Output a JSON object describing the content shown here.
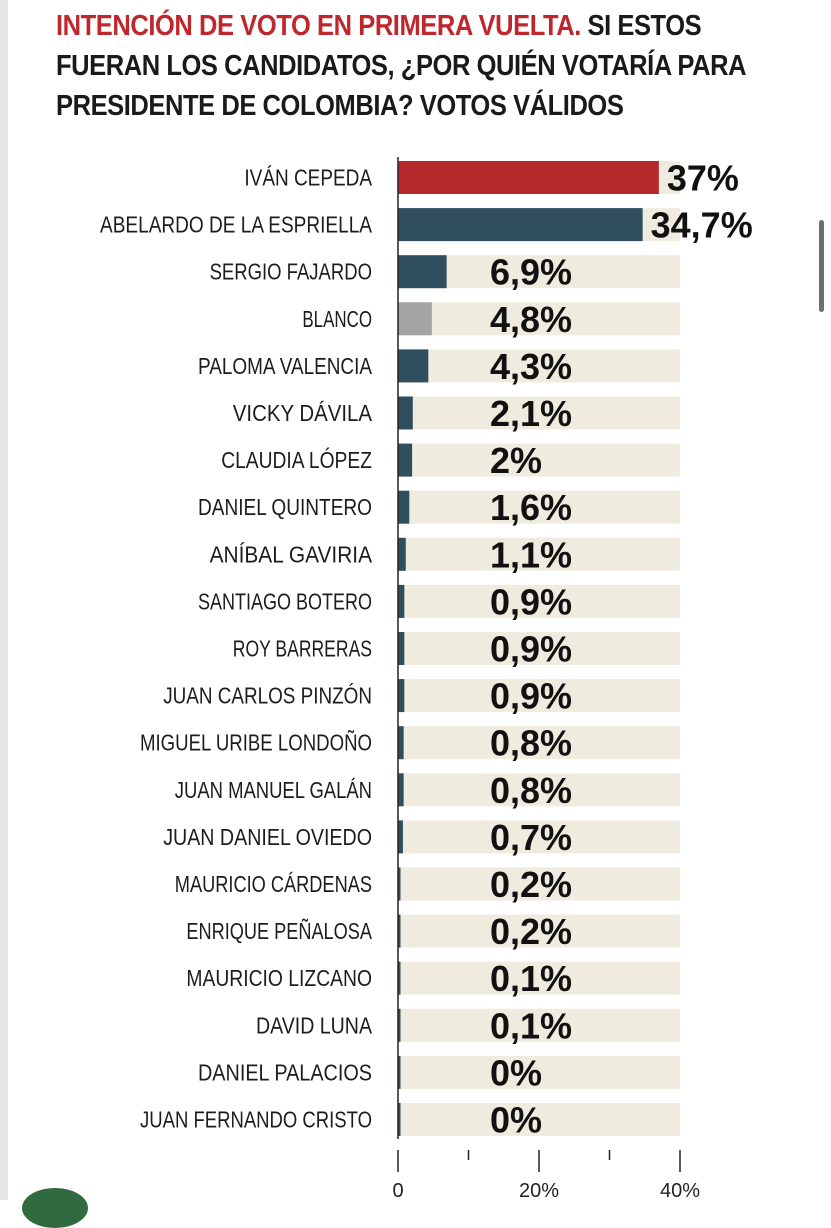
{
  "title": {
    "highlight": "INTENCIÓN DE VOTO EN PRIMERA VUELTA.",
    "rest": " SI ESTOS FUERAN LOS CANDIDATOS, ¿POR QUIÉN VOTARÍA PARA PRESIDENTE DE COLOMBIA? VOTOS VÁLIDOS"
  },
  "colors": {
    "leader": "#b5292d",
    "candidate": "#2f4f5f",
    "blank": "#a3a3a3",
    "track": "#efebde",
    "title_red": "#c0272d"
  },
  "chart_data": {
    "type": "bar",
    "orientation": "horizontal",
    "categories": [
      "IVÁN CEPEDA",
      "ABELARDO DE LA ESPRIELLA",
      "SERGIO FAJARDO",
      "BLANCO",
      "PALOMA VALENCIA",
      "VICKY DÁVILA",
      "CLAUDIA LÓPEZ",
      "DANIEL QUINTERO",
      "ANÍBAL GAVIRIA",
      "SANTIAGO BOTERO",
      "ROY BARRERAS",
      "JUAN CARLOS PINZÓN",
      "MIGUEL URIBE LONDOÑO",
      "JUAN MANUEL GALÁN",
      "JUAN DANIEL OVIEDO",
      "MAURICIO CÁRDENAS",
      "ENRIQUE PEÑALOSA",
      "MAURICIO LIZCANO",
      "DAVID LUNA",
      "DANIEL PALACIOS",
      "JUAN FERNANDO CRISTO"
    ],
    "values": [
      37,
      34.7,
      6.9,
      4.8,
      4.3,
      2.1,
      2,
      1.6,
      1.1,
      0.9,
      0.9,
      0.9,
      0.8,
      0.8,
      0.7,
      0.2,
      0.2,
      0.1,
      0.1,
      0,
      0
    ],
    "value_labels": [
      "37%",
      "34,7%",
      "6,9%",
      "4,8%",
      "4,3%",
      "2,1%",
      "2%",
      "1,6%",
      "1,1%",
      "0,9%",
      "0,9%",
      "0,9%",
      "0,8%",
      "0,8%",
      "0,7%",
      "0,2%",
      "0,2%",
      "0,1%",
      "0,1%",
      "0%",
      "0%"
    ],
    "bar_kind": [
      "leader",
      "candidate",
      "candidate",
      "blank",
      "candidate",
      "candidate",
      "candidate",
      "candidate",
      "candidate",
      "candidate",
      "candidate",
      "candidate",
      "candidate",
      "candidate",
      "candidate",
      "candidate",
      "candidate",
      "candidate",
      "candidate",
      "candidate",
      "candidate"
    ],
    "xlim": [
      0,
      40
    ],
    "xticks": [
      0,
      20,
      40
    ],
    "xtick_labels": [
      "0",
      "20%",
      "40%"
    ],
    "grid": false
  }
}
